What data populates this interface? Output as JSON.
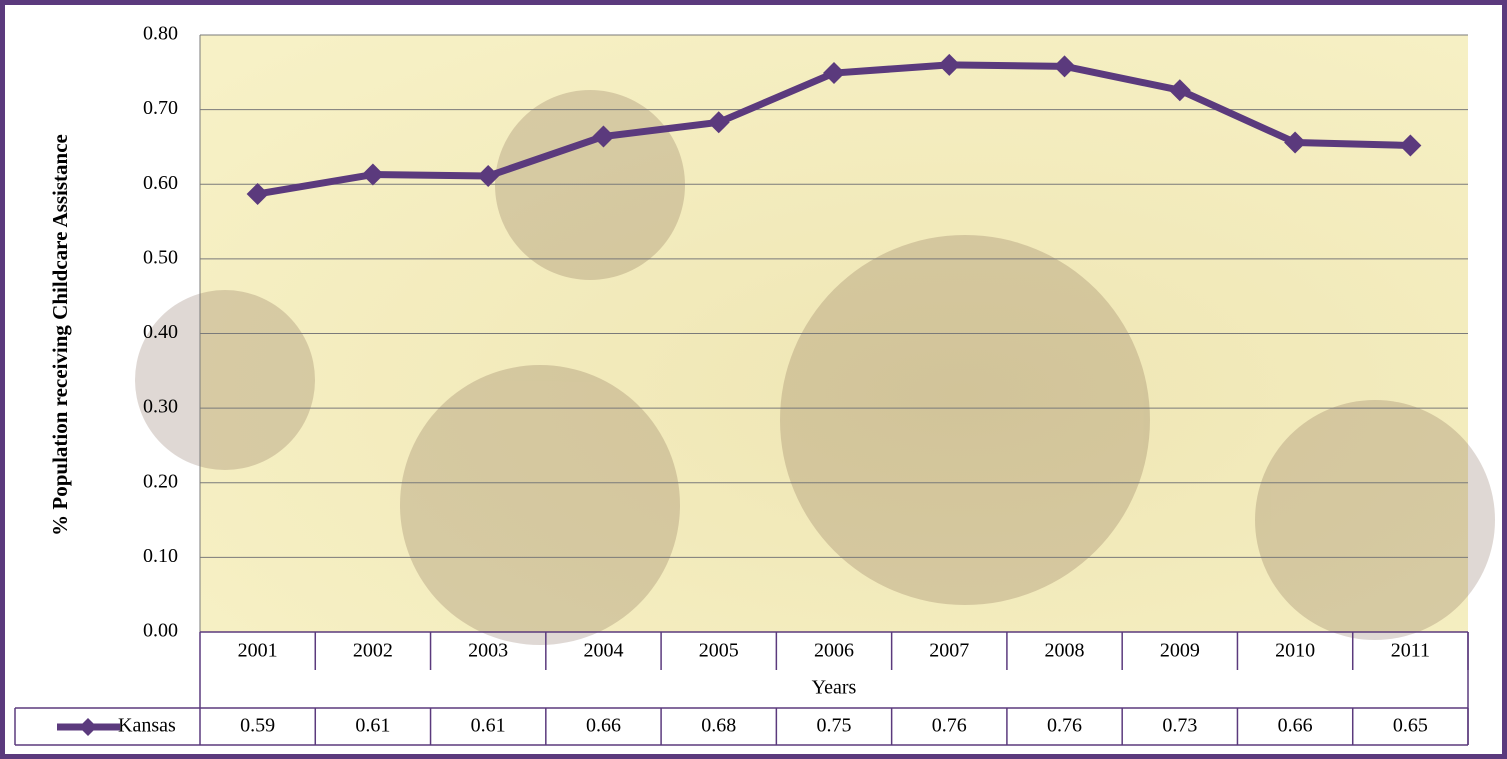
{
  "chart_data": {
    "type": "line",
    "y_label": "% Population receiving Childcare Assistance",
    "x_label": "Years",
    "categories": [
      "2001",
      "2002",
      "2003",
      "2004",
      "2005",
      "2006",
      "2007",
      "2008",
      "2009",
      "2010",
      "2011"
    ],
    "series": [
      {
        "name": "Kansas",
        "color": "#5b3a7d",
        "values": [
          0.587,
          0.613,
          0.611,
          0.664,
          0.683,
          0.749,
          0.76,
          0.758,
          0.726,
          0.656,
          0.652
        ],
        "value_labels": [
          "0.59",
          "0.61",
          "0.61",
          "0.66",
          "0.68",
          "0.75",
          "0.76",
          "0.76",
          "0.73",
          "0.66",
          "0.65"
        ]
      }
    ],
    "ylim": [
      0,
      0.8
    ],
    "yticks": [
      {
        "value": 0,
        "label": "0.00"
      },
      {
        "value": 0.1,
        "label": "0.10"
      },
      {
        "value": 0.2,
        "label": "0.20"
      },
      {
        "value": 0.3,
        "label": "0.30"
      },
      {
        "value": 0.4,
        "label": "0.40"
      },
      {
        "value": 0.5,
        "label": "0.50"
      },
      {
        "value": 0.6,
        "label": "0.60"
      },
      {
        "value": 0.7,
        "label": "0.70"
      },
      {
        "value": 0.8,
        "label": "0.80"
      }
    ],
    "grid": true
  }
}
